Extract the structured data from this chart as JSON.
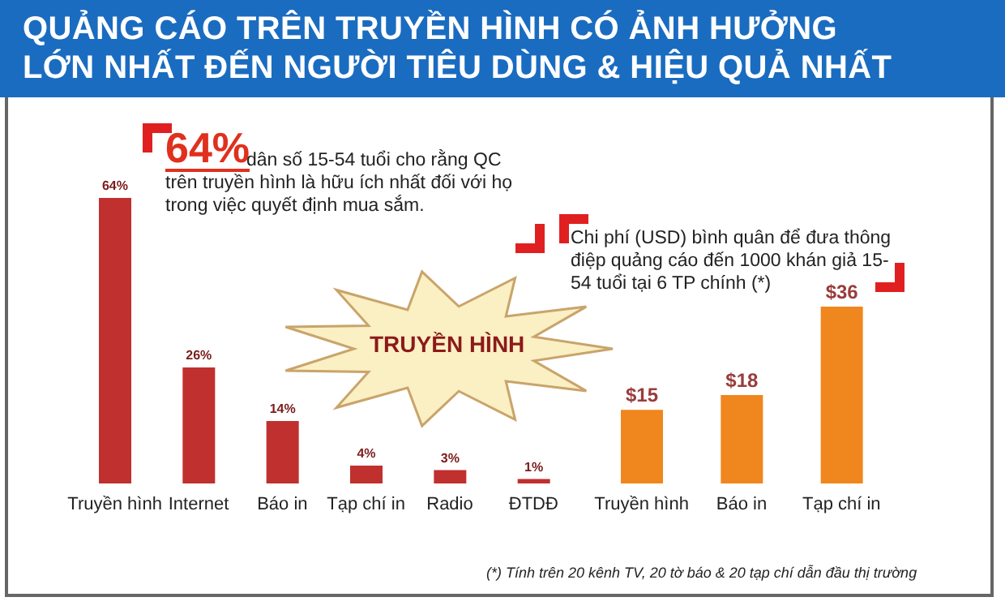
{
  "chart_data": [
    {
      "type": "bar",
      "title": "QUẢNG CÁO TRÊN TRUYỀN HÌNH CÓ ẢNH HƯỞNG LỚN NHẤT ĐẾN NGƯỜI TIÊU DÙNG & HIỆU QUẢ NHẤT",
      "categories": [
        "Truyền hình",
        "Internet",
        "Báo in",
        "Tạp chí in",
        "Radio",
        "ĐTDĐ"
      ],
      "values": [
        64,
        26,
        14,
        4,
        3,
        1
      ],
      "value_labels": [
        "64%",
        "26%",
        "14%",
        "4%",
        "3%",
        "1%"
      ],
      "color": "#c0302e",
      "tick_labels": "x",
      "annotations": [
        "64%",
        "dân số 15-54 tuổi cho rằng QC trên truyền hình là hữu ích nhất đối với họ trong việc quyết định mua sắm.",
        "TRUYỀN HÌNH"
      ]
    },
    {
      "type": "bar",
      "categories": [
        "Truyền hình",
        "Báo in",
        "Tạp chí in"
      ],
      "values": [
        15,
        18,
        36
      ],
      "value_labels": [
        "$15",
        "$18",
        "$36"
      ],
      "color": "#f0861e",
      "tick_labels": "x",
      "annotations": [
        "Chi phí (USD) bình quân để đưa thông điệp quảng cáo đến 1000 khán giả 15-54 tuổi tại 6 TP chính (*)",
        "(*) Tính trên 20 kênh TV, 20 tờ báo & 20 tạp chí dẫn đầu thị trường"
      ]
    }
  ]
}
